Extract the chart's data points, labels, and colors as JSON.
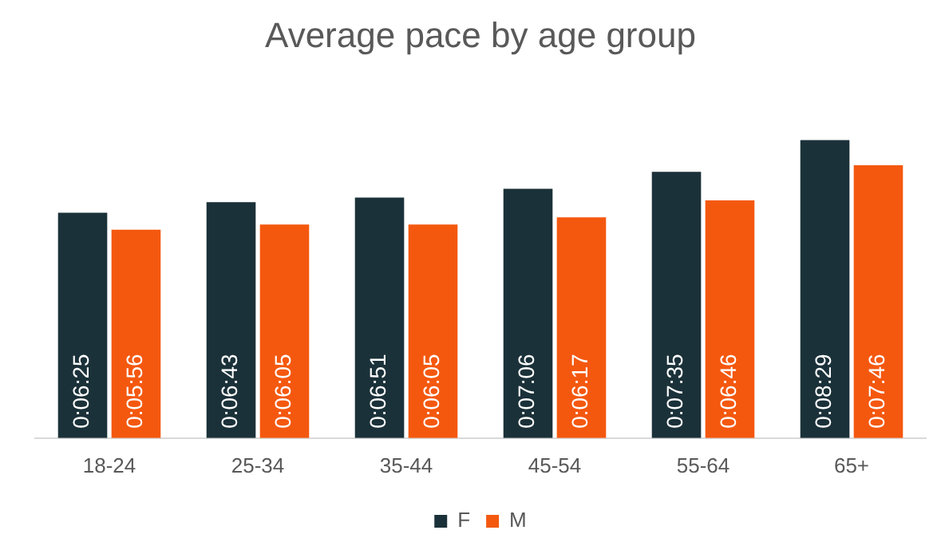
{
  "chart_data": {
    "type": "bar",
    "title": "Average pace by age group",
    "categories": [
      "18-24",
      "25-34",
      "35-44",
      "45-54",
      "55-64",
      "65+"
    ],
    "legend": "bottom",
    "grid": false,
    "tick_labels": "x",
    "series": [
      {
        "name": "F",
        "color": "#1b3139",
        "values": [
          385,
          403,
          411,
          426,
          455,
          509
        ],
        "value_labels": [
          "0:06:25",
          "0:06:43",
          "0:06:51",
          "0:07:06",
          "0:07:35",
          "0:08:29"
        ]
      },
      {
        "name": "M",
        "color": "#f4580f",
        "values": [
          356,
          365,
          365,
          377,
          406,
          466
        ],
        "value_labels": [
          "0:05:56",
          "0:06:05",
          "0:06:05",
          "0:06:17",
          "0:06:46",
          "0:07:46"
        ]
      }
    ]
  }
}
